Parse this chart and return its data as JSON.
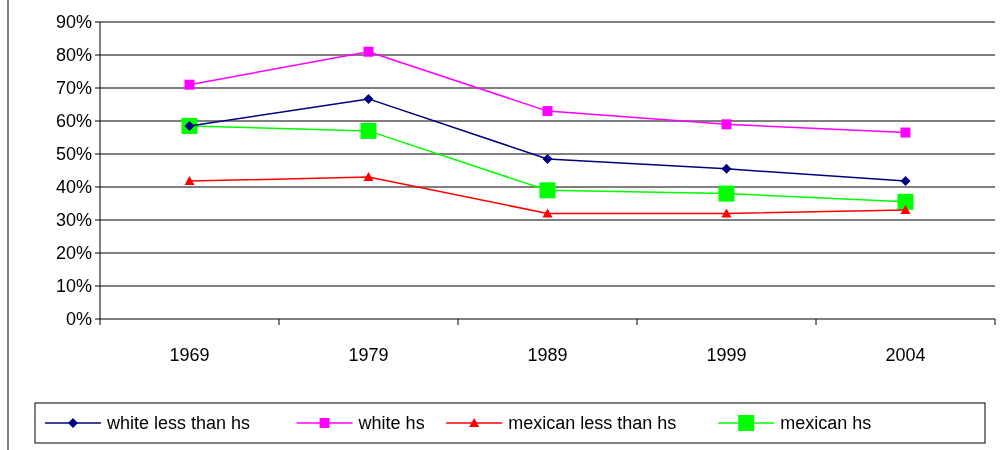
{
  "chart_data": {
    "type": "line",
    "categories": [
      "1969",
      "1979",
      "1989",
      "1999",
      "2004"
    ],
    "series": [
      {
        "name": "white less than hs",
        "color": "#000080",
        "marker": "diamond",
        "values": [
          58.5,
          66.7,
          48.5,
          45.5,
          41.8
        ]
      },
      {
        "name": "white hs",
        "color": "#ff00ff",
        "marker": "square",
        "values": [
          71,
          81,
          63,
          59,
          56.5
        ]
      },
      {
        "name": "mexican less than hs",
        "color": "#ff0000",
        "marker": "triangle",
        "values": [
          41.8,
          43,
          32,
          32,
          33
        ]
      },
      {
        "name": "mexican hs",
        "color": "#00ff00",
        "marker": "square",
        "values": [
          58.5,
          57,
          39,
          38,
          35.5
        ]
      }
    ],
    "ylim": [
      0,
      90
    ],
    "yticks": [
      {
        "value": 0,
        "label": "0%"
      },
      {
        "value": 10,
        "label": "10%"
      },
      {
        "value": 20,
        "label": "20%"
      },
      {
        "value": 30,
        "label": "30%"
      },
      {
        "value": 40,
        "label": "40%"
      },
      {
        "value": 50,
        "label": "50%"
      },
      {
        "value": 60,
        "label": "60%"
      },
      {
        "value": 70,
        "label": "70%"
      },
      {
        "value": 80,
        "label": "80%"
      },
      {
        "value": 90,
        "label": "90%"
      }
    ],
    "grid": "y",
    "legend": "bottom",
    "line_style": "solid"
  }
}
